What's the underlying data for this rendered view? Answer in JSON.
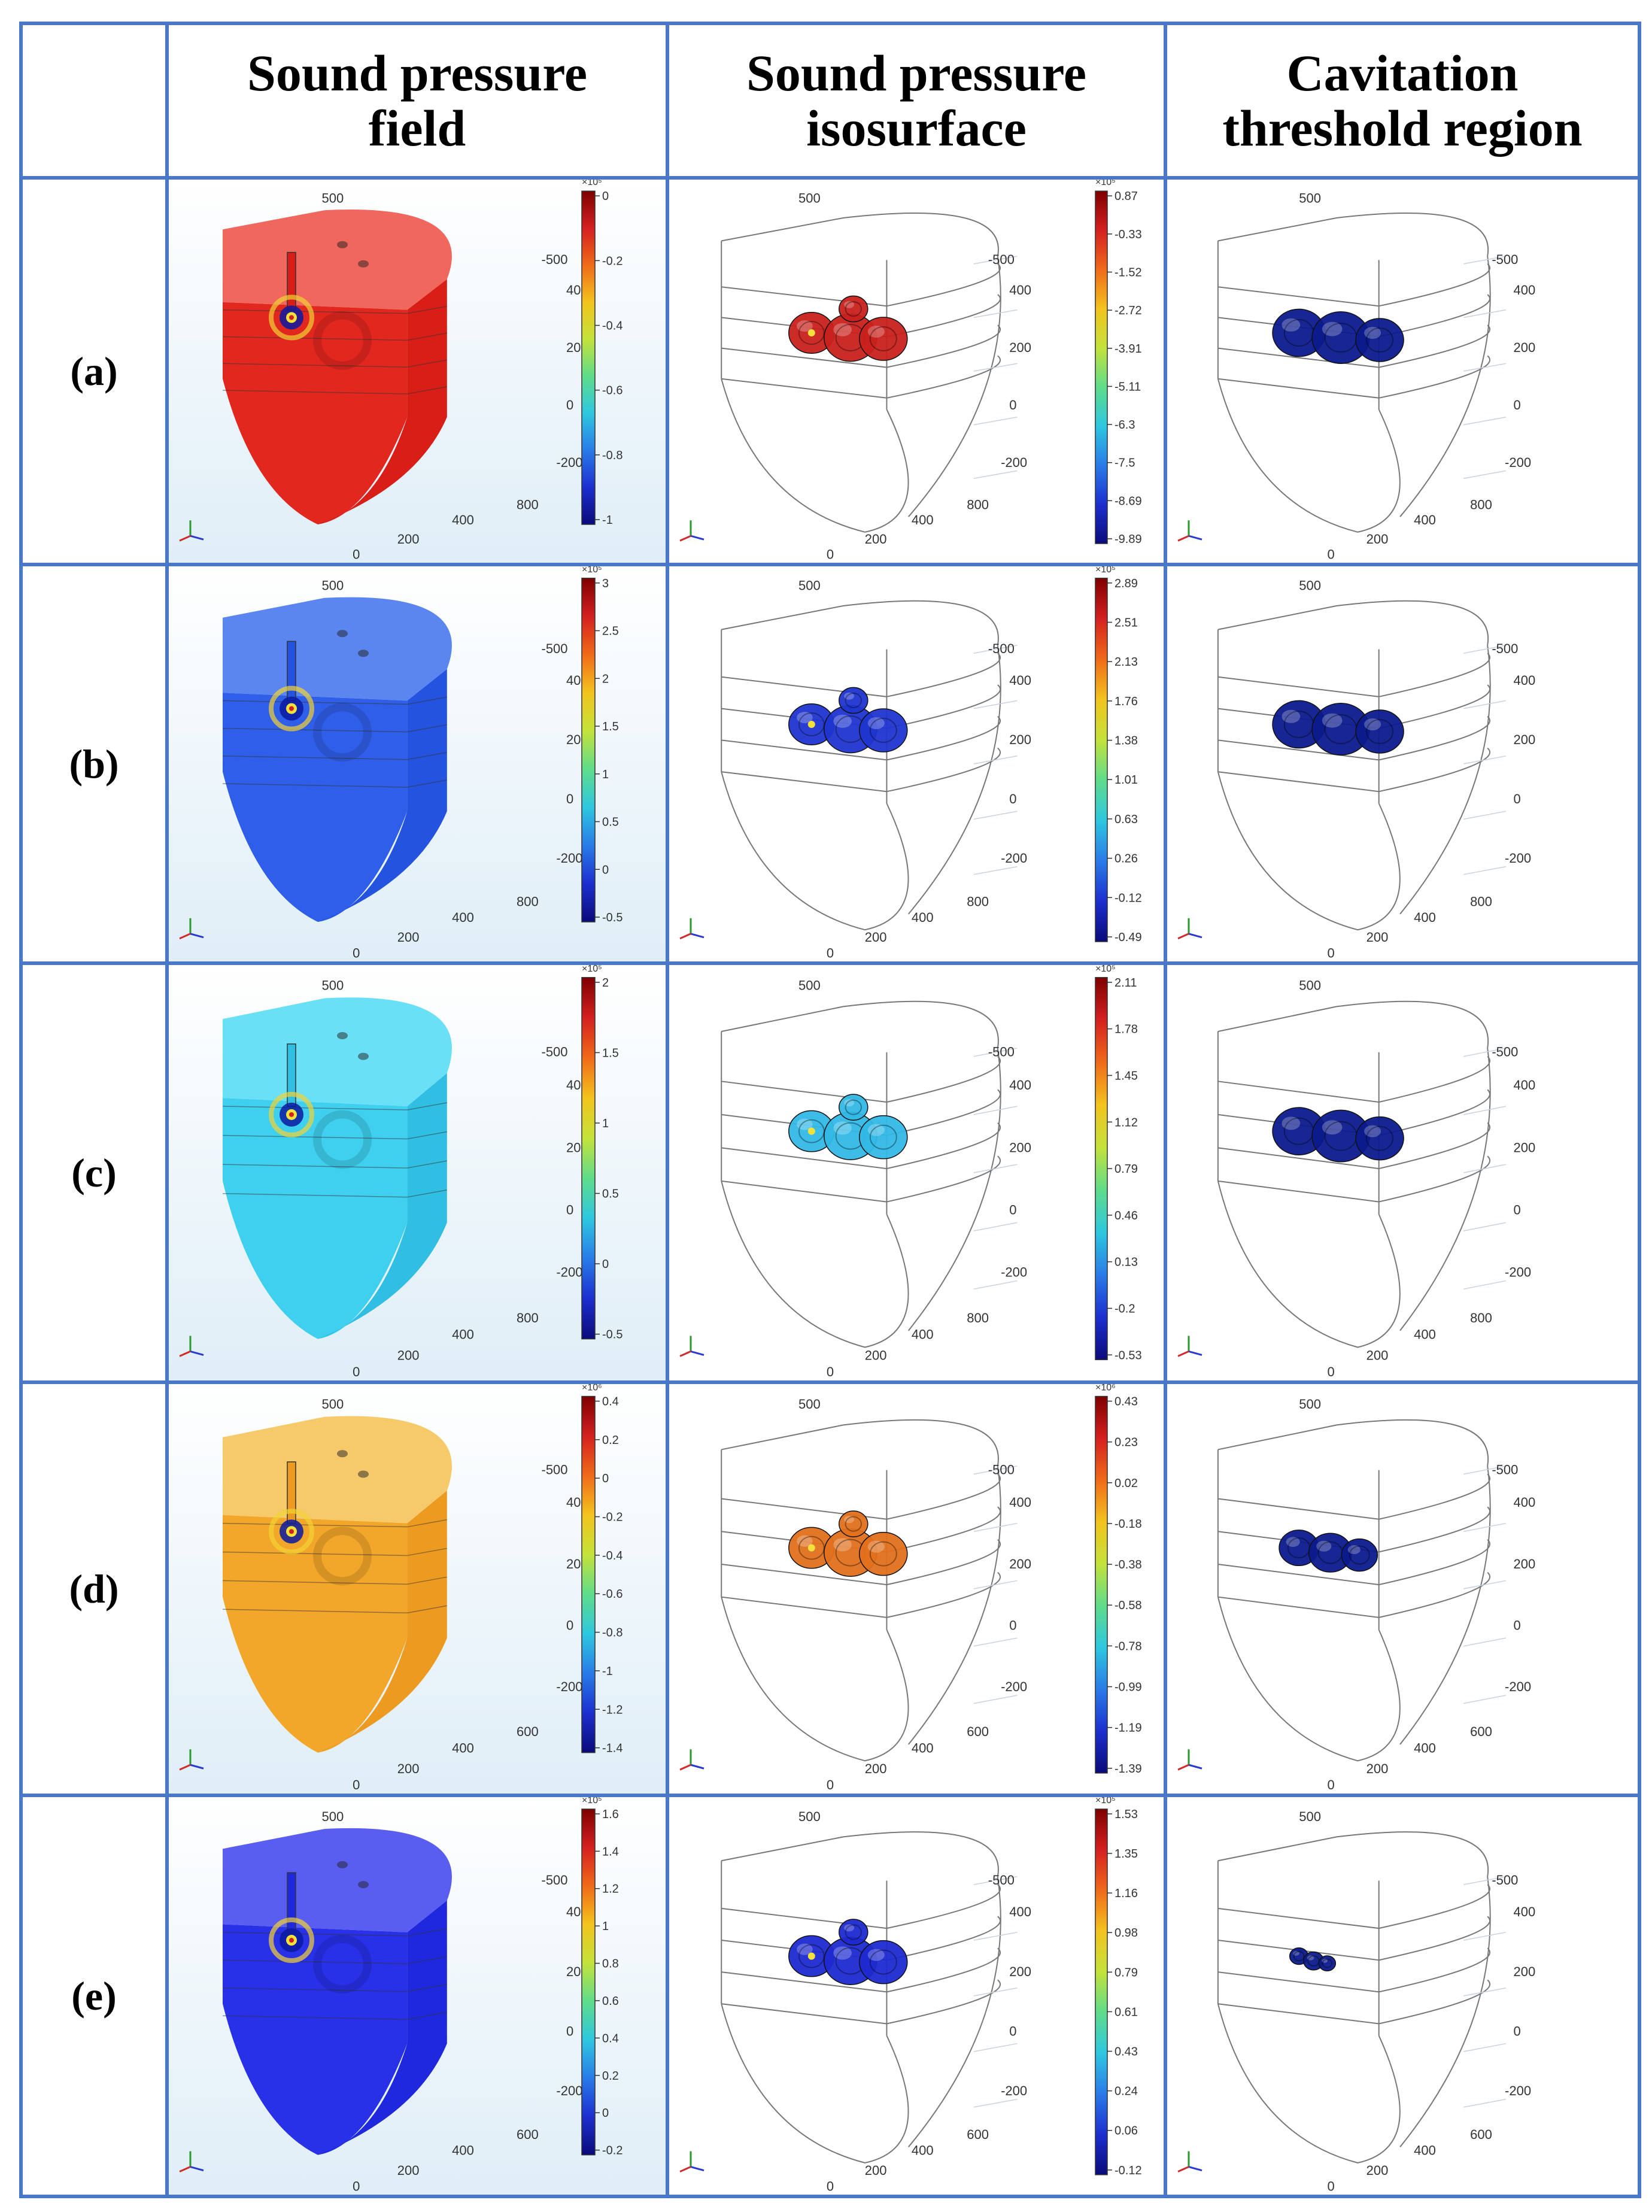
{
  "headers": {
    "field": [
      "Sound pressure",
      "field"
    ],
    "iso": [
      "Sound pressure",
      "isosurface"
    ],
    "cav": [
      "Cavitation",
      "threshold region"
    ]
  },
  "rows": [
    {
      "label": "(a)",
      "field": {
        "color": "#e2271f",
        "top": "#f0675e",
        "side": "#d81e17",
        "pos_level": 0.0,
        "cb_ticks": [
          "0",
          "-0.2",
          "-0.4",
          "-0.6",
          "-0.8",
          "-1"
        ],
        "cb_exp": "×10⁵"
      },
      "iso": {
        "color": "#c8211c",
        "cb_ticks": [
          "0.87",
          "-0.33",
          "-1.52",
          "-2.72",
          "-3.91",
          "-5.11",
          "-6.3",
          "-7.5",
          "-8.69",
          "-9.89"
        ],
        "cb_exp": "×10⁵"
      },
      "axis": {
        "top": "500",
        "r1": "-500",
        "r2": "400",
        "r3": "200",
        "r4": "0",
        "r5": "-200",
        "d1": "800",
        "d2": "400",
        "d3": "200",
        "d4": "0"
      }
    },
    {
      "label": "(b)",
      "field": {
        "color": "#2f5ee8",
        "top": "#5b86ef",
        "side": "#2453e0",
        "pos_level": 0.55,
        "cb_ticks": [
          "3",
          "2.5",
          "2",
          "1.5",
          "1",
          "0.5",
          "0",
          "-0.5"
        ],
        "cb_exp": "×10⁵"
      },
      "iso": {
        "color": "#1f35d0",
        "cb_ticks": [
          "2.89",
          "2.51",
          "2.13",
          "1.76",
          "1.38",
          "1.01",
          "0.63",
          "0.26",
          "-0.12",
          "-0.49"
        ],
        "cb_exp": "×10⁵"
      },
      "axis": {
        "top": "500",
        "r1": "-500",
        "r2": "400",
        "r3": "200",
        "r4": "0",
        "r5": "-200",
        "d1": "800",
        "d2": "400",
        "d3": "200",
        "d4": "0"
      }
    },
    {
      "label": "(c)",
      "field": {
        "color": "#3fd0f0",
        "top": "#6ae0f6",
        "side": "#30bfe3",
        "pos_level": 0.3,
        "cb_ticks": [
          "2",
          "1.5",
          "1",
          "0.5",
          "0",
          "-0.5"
        ],
        "cb_exp": "×10⁵"
      },
      "iso": {
        "color": "#33b8e6",
        "cb_ticks": [
          "2.11",
          "1.78",
          "1.45",
          "1.12",
          "0.79",
          "0.46",
          "0.13",
          "-0.2",
          "-0.53"
        ],
        "cb_exp": "×10⁵"
      },
      "axis": {
        "top": "500",
        "r1": "-500",
        "r2": "400",
        "r3": "200",
        "r4": "0",
        "r5": "-200",
        "d1": "800",
        "d2": "400",
        "d3": "200",
        "d4": "0"
      }
    },
    {
      "label": "(d)",
      "field": {
        "color": "#f2a62a",
        "top": "#f6c96a",
        "side": "#ec9a20",
        "pos_level": 0.8,
        "cb_ticks": [
          "0.4",
          "0.2",
          "0",
          "-0.2",
          "-0.4",
          "-0.6",
          "-0.8",
          "-1",
          "-1.2",
          "-1.4"
        ],
        "cb_exp": "×10⁶"
      },
      "iso": {
        "color": "#e2701c",
        "cb_ticks": [
          "0.43",
          "0.23",
          "0.02",
          "-0.18",
          "-0.38",
          "-0.58",
          "-0.78",
          "-0.99",
          "-1.19",
          "-1.39"
        ],
        "cb_exp": "×10⁶"
      },
      "axis": {
        "top": "500",
        "r1": "-500",
        "r2": "400",
        "r3": "200",
        "r4": "0",
        "r5": "-200",
        "d1": "600",
        "d2": "400",
        "d3": "200",
        "d4": "0"
      }
    },
    {
      "label": "(e)",
      "field": {
        "color": "#2830e8",
        "top": "#5a5ef0",
        "side": "#1f28dc",
        "pos_level": 0.15,
        "cb_ticks": [
          "1.6",
          "1.4",
          "1.2",
          "1",
          "0.8",
          "0.6",
          "0.4",
          "0.2",
          "0",
          "-0.2"
        ],
        "cb_exp": "×10⁵"
      },
      "iso": {
        "color": "#1d2ad0",
        "cb_ticks": [
          "1.53",
          "1.35",
          "1.16",
          "0.98",
          "0.79",
          "0.61",
          "0.43",
          "0.24",
          "0.06",
          "-0.12"
        ],
        "cb_exp": "×10⁵"
      },
      "axis": {
        "top": "500",
        "r1": "-500",
        "r2": "400",
        "r3": "200",
        "r4": "0",
        "r5": "-200",
        "d1": "600",
        "d2": "400",
        "d3": "200",
        "d4": "0"
      }
    }
  ],
  "colors": {
    "grid": "#4a78c8",
    "cavitation": "#0b1a8c"
  }
}
